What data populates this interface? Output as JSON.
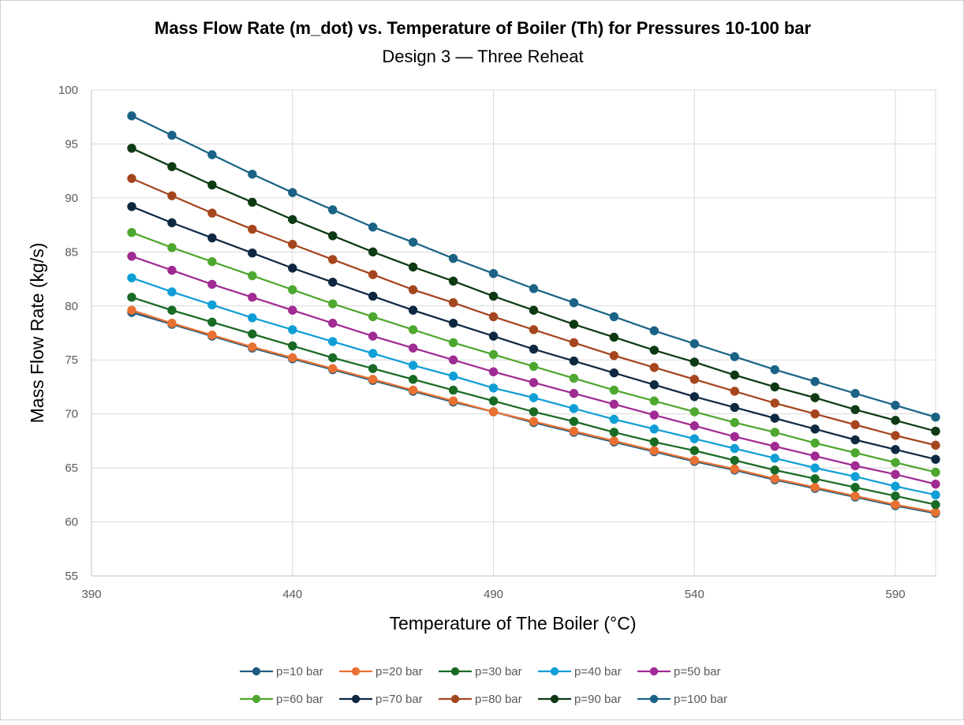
{
  "chart_data": {
    "type": "line",
    "title": "Mass Flow Rate (m_dot) vs. Temperature of Boiler (Th) for Pressures 10-100 bar",
    "subtitle": "Design 3 — Three Reheat",
    "xlabel": "Temperature of The Boiler (°C)",
    "ylabel": "Mass Flow Rate (kg/s)",
    "xlim": [
      390,
      600
    ],
    "ylim": [
      55,
      100
    ],
    "x_ticks": [
      "390",
      "440",
      "490",
      "540",
      "590"
    ],
    "y_ticks": [
      "55",
      "60",
      "65",
      "70",
      "75",
      "80",
      "85",
      "90",
      "95",
      "100"
    ],
    "grid": true,
    "legend_position": "bottom",
    "x": [
      400,
      410,
      420,
      430,
      440,
      450,
      460,
      470,
      480,
      490,
      500,
      510,
      520,
      530,
      540,
      550,
      560,
      570,
      580,
      590,
      600
    ],
    "series": [
      {
        "name": "p=10 bar",
        "color": "#1F5C80",
        "values": [
          79.4,
          78.3,
          77.2,
          76.1,
          75.1,
          74.1,
          73.1,
          72.1,
          71.1,
          70.2,
          69.2,
          68.3,
          67.4,
          66.5,
          65.6,
          64.8,
          63.9,
          63.1,
          62.3,
          61.5,
          60.8
        ]
      },
      {
        "name": "p=20 bar",
        "color": "#E97132",
        "values": [
          79.6,
          78.4,
          77.3,
          76.2,
          75.2,
          74.2,
          73.2,
          72.2,
          71.2,
          70.2,
          69.3,
          68.4,
          67.5,
          66.6,
          65.7,
          64.9,
          64.0,
          63.2,
          62.4,
          61.6,
          60.9
        ]
      },
      {
        "name": "p=30 bar",
        "color": "#196B24",
        "values": [
          80.8,
          79.6,
          78.5,
          77.4,
          76.3,
          75.2,
          74.2,
          73.2,
          72.2,
          71.2,
          70.2,
          69.3,
          68.3,
          67.4,
          66.6,
          65.7,
          64.8,
          64.0,
          63.2,
          62.4,
          61.6
        ]
      },
      {
        "name": "p=40 bar",
        "color": "#0F9ED5",
        "values": [
          82.6,
          81.3,
          80.1,
          78.9,
          77.8,
          76.7,
          75.6,
          74.5,
          73.5,
          72.4,
          71.5,
          70.5,
          69.5,
          68.6,
          67.7,
          66.8,
          65.9,
          65.0,
          64.2,
          63.3,
          62.5
        ]
      },
      {
        "name": "p=50 bar",
        "color": "#A02B93",
        "values": [
          84.6,
          83.3,
          82.0,
          80.8,
          79.6,
          78.4,
          77.2,
          76.1,
          75.0,
          73.9,
          72.9,
          71.9,
          70.9,
          69.9,
          68.9,
          67.9,
          67.0,
          66.1,
          65.2,
          64.4,
          63.5
        ]
      },
      {
        "name": "p=60 bar",
        "color": "#4EA72E",
        "values": [
          86.8,
          85.4,
          84.1,
          82.8,
          81.5,
          80.2,
          79.0,
          77.8,
          76.6,
          75.5,
          74.4,
          73.3,
          72.2,
          71.2,
          70.2,
          69.2,
          68.3,
          67.3,
          66.4,
          65.5,
          64.6
        ]
      },
      {
        "name": "p=70 bar",
        "color": "#0E2841",
        "values": [
          89.2,
          87.7,
          86.3,
          84.9,
          83.5,
          82.2,
          80.9,
          79.6,
          78.4,
          77.2,
          76.0,
          74.9,
          73.8,
          72.7,
          71.6,
          70.6,
          69.6,
          68.6,
          67.6,
          66.7,
          65.8
        ]
      },
      {
        "name": "p=80 bar",
        "color": "#A5461E",
        "values": [
          91.8,
          90.2,
          88.6,
          87.1,
          85.7,
          84.3,
          82.9,
          81.5,
          80.3,
          79.0,
          77.8,
          76.6,
          75.4,
          74.3,
          73.2,
          72.1,
          71.0,
          70.0,
          69.0,
          68.0,
          67.1
        ]
      },
      {
        "name": "p=90 bar",
        "color": "#0E3A13",
        "values": [
          94.6,
          92.9,
          91.2,
          89.6,
          88.0,
          86.5,
          85.0,
          83.6,
          82.3,
          80.9,
          79.6,
          78.3,
          77.1,
          75.9,
          74.8,
          73.6,
          72.5,
          71.5,
          70.4,
          69.4,
          68.4
        ]
      },
      {
        "name": "p=100 bar",
        "color": "#1A6385",
        "values": [
          97.6,
          95.8,
          94.0,
          92.2,
          90.5,
          88.9,
          87.3,
          85.9,
          84.4,
          83.0,
          81.6,
          80.3,
          79.0,
          77.7,
          76.5,
          75.3,
          74.1,
          73.0,
          71.9,
          70.8,
          69.7
        ]
      }
    ]
  }
}
